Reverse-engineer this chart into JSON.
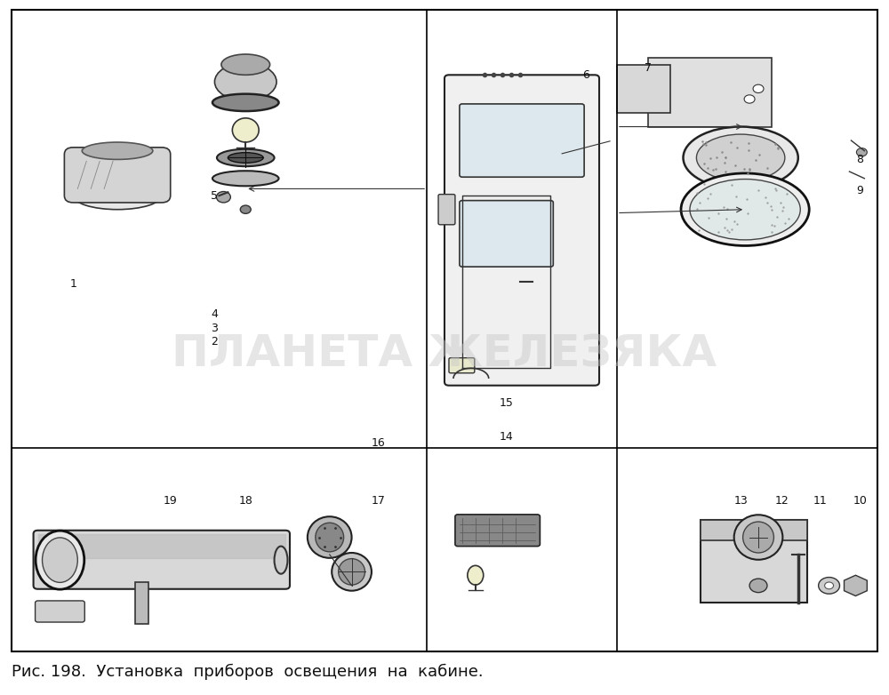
{
  "title": "",
  "caption": "Рис. 198.  Установка  приборов  освещения  на  кабине.",
  "watermark": "ПЛАНЕТА ЖЕЛЕЗЯКА",
  "background_color": "#ffffff",
  "fig_width": 10.0,
  "fig_height": 7.82,
  "caption_fontsize": 13,
  "watermark_fontsize": 36,
  "watermark_color": "#c8c8c8",
  "watermark_alpha": 0.45,
  "border_color": "#000000",
  "border_linewidth": 1.5,
  "outer_border": true
}
